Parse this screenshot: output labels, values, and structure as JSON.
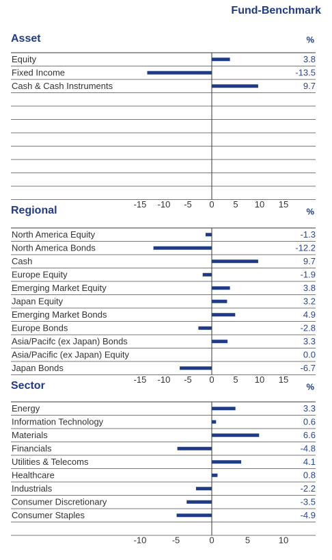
{
  "header": "Fund-Benchmark",
  "chart_data": [
    {
      "type": "bar",
      "title": "Asset",
      "unit": "%",
      "categories": [
        "Equity",
        "Fixed Income",
        "Cash  & Cash Instruments"
      ],
      "values": [
        3.8,
        -13.5,
        9.7
      ],
      "value_labels": [
        "3.8",
        "-13.5",
        "9.7"
      ],
      "color": "#1f3a86",
      "xlim": [
        -15,
        15
      ],
      "xticks": [
        -15,
        -10,
        -5,
        0,
        5,
        10,
        15
      ]
    },
    {
      "type": "bar",
      "title": "Regional",
      "unit": "%",
      "categories": [
        "North America Equity",
        "North America Bonds",
        "Cash",
        "Europe Equity",
        "Emerging Market Equity",
        "Japan Equity",
        "Emerging Market Bonds",
        "Europe Bonds",
        "Asia/Pacifc (ex Japan) Bonds",
        "Asia/Pacific (ex Japan) Equity",
        "Japan Bonds"
      ],
      "values": [
        -1.3,
        -12.2,
        9.7,
        -1.9,
        3.8,
        3.2,
        4.9,
        -2.8,
        3.3,
        0.0,
        -6.7
      ],
      "value_labels": [
        "-1.3",
        "-12.2",
        "9.7",
        "-1.9",
        "3.8",
        "3.2",
        "4.9",
        "-2.8",
        "3.3",
        "0.0",
        "-6.7"
      ],
      "color": "#1f3a86",
      "xlim": [
        -15,
        15
      ],
      "xticks": [
        -15,
        -10,
        -5,
        0,
        5,
        10,
        15
      ]
    },
    {
      "type": "bar",
      "title": "Sector",
      "unit": "%",
      "categories": [
        "Energy",
        "Information Technology",
        "Materials",
        "Financials",
        "Utilities & Telecoms",
        "Healthcare",
        "Industrials",
        "Consumer Discretionary",
        "Consumer Staples"
      ],
      "values": [
        3.3,
        0.6,
        6.6,
        -4.8,
        4.1,
        0.8,
        -2.2,
        -3.5,
        -4.9
      ],
      "value_labels": [
        "3.3",
        "0.6",
        "6.6",
        "-4.8",
        "4.1",
        "0.8",
        "-2.2",
        "-3.5",
        "-4.9"
      ],
      "color": "#1f3a86",
      "xlim": [
        -10,
        10
      ],
      "xticks": [
        -10,
        -5,
        0,
        5,
        10
      ]
    }
  ]
}
